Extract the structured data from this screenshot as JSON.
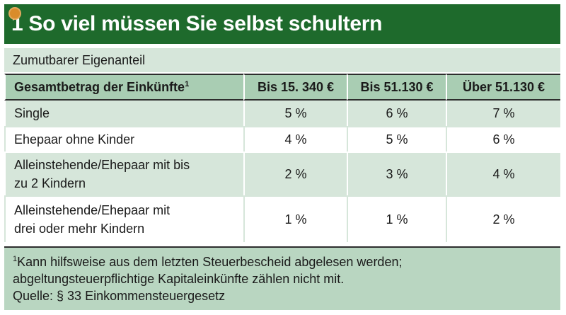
{
  "title": "1 So viel müssen Sie selbst schultern",
  "subtitle": "Zumutbarer Eigenanteil",
  "table": {
    "header": {
      "label": "Gesamtbetrag der Einkünfte",
      "label_sup": "1",
      "cols": [
        "Bis 15. 340 €",
        "Bis 51.130 €",
        "Über 51.130 €"
      ]
    },
    "rows": [
      {
        "label": "Single",
        "values": [
          "5 %",
          "6 %",
          "7 %"
        ]
      },
      {
        "label": "Ehepaar ohne Kinder",
        "values": [
          "4 %",
          "5 %",
          "6 %"
        ]
      },
      {
        "label_line1": "Alleinstehende/Ehepaar mit bis",
        "label_line2": "zu 2 Kindern",
        "values": [
          "2 %",
          "3 %",
          "4 %"
        ]
      },
      {
        "label_line1": "Alleinstehende/Ehepaar mit",
        "label_line2": "drei oder mehr Kindern",
        "values": [
          "1 %",
          "1 %",
          "2 %"
        ]
      }
    ]
  },
  "footnote": {
    "sup": "1",
    "line1": "Kann hilfsweise aus dem letzten Steuerbescheid abgelesen werden;",
    "line2": "abgeltungsteuerpflichtige Kapitaleinkünfte zählen nicht mit.",
    "line3": "Quelle: § 33 Einkommensteuergesetz"
  },
  "colors": {
    "title_bg": "#1e6a2c",
    "header_bg": "#a9cdb3",
    "row_light": "#d6e6da",
    "footnote_bg": "#b9d6c1"
  }
}
